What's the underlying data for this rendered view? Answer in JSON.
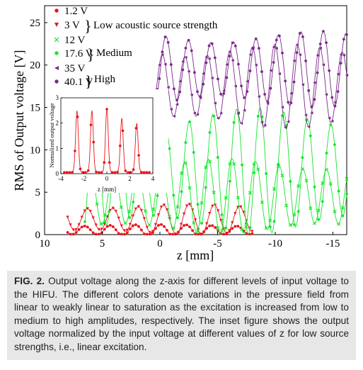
{
  "colors": {
    "low": "#e8141b",
    "medium": "#14e62a",
    "high": "#7a2a8a"
  },
  "chart_data": [
    {
      "type": "line",
      "xlabel": "z [mm]",
      "ylabel": "RMS of Output voltage [V]",
      "xlim": [
        10,
        -16.2
      ],
      "ylim": [
        0,
        27
      ],
      "x_ticks": [
        "10",
        "5",
        "0",
        "-5",
        "-10",
        "-15"
      ],
      "y_ticks": [
        "0",
        "5",
        "10",
        "15",
        "20",
        "25"
      ],
      "legend_position": "top-left",
      "legend_groups": [
        "Low acoustic source strength",
        "Medium",
        "High"
      ],
      "series": [
        {
          "name": "1.2 V",
          "group": "low",
          "marker": "dot",
          "x_range": [
            8,
            -8
          ],
          "baseline": 0.5,
          "amplitude": 0.7,
          "period": 2.2,
          "phase": 0.2
        },
        {
          "name": "3 V",
          "group": "low",
          "marker": "down-triangle",
          "x_range": [
            8,
            -8
          ],
          "baseline": 1.8,
          "amplitude": 1.8,
          "period": 2.2,
          "phase": 0.9
        },
        {
          "name": "12 V",
          "group": "medium",
          "marker": "x",
          "x_range": [
            6.5,
            -16.2
          ],
          "baseline": 4.5,
          "amplitude": 4.5,
          "period": 2.05,
          "phase": 0.3
        },
        {
          "name": "17.6 V",
          "group": "medium",
          "marker": "dot",
          "x_range": [
            6.5,
            -16.2
          ],
          "baseline": 7.5,
          "amplitude": 7.5,
          "period": 2.05,
          "phase": 1.5
        },
        {
          "name": "35 V",
          "group": "high",
          "marker": "left-triangle",
          "x_range": [
            0.3,
            -16.2
          ],
          "baseline": 17.5,
          "amplitude": 5.0,
          "period": 1.95,
          "phase": 0.7
        },
        {
          "name": "40.1 V",
          "group": "high",
          "marker": "dot",
          "x_range": [
            0.3,
            -16.2
          ],
          "baseline": 19.5,
          "amplitude": 4.5,
          "period": 1.95,
          "phase": 1.7
        }
      ]
    },
    {
      "type": "line",
      "inset": true,
      "xlabel": "z [mm]",
      "ylabel": "Normalized output voltage",
      "xlim": [
        -4,
        4
      ],
      "ylim": [
        0,
        3
      ],
      "x_ticks": [
        "-4",
        "-2",
        "0",
        "2",
        "4"
      ],
      "y_ticks": [
        "0",
        "1",
        "2",
        "3"
      ],
      "series": [
        {
          "name": "low source normalized",
          "period": 1.3,
          "peaks": [
            2.5,
            2.5,
            2.55,
            2.2,
            2.0
          ],
          "min": 0.05
        }
      ]
    }
  ],
  "caption": {
    "label": "FIG. 2.",
    "text": " Output voltage along the z-axis for different levels of input voltage to the HIFU. The different colors denote variations in the pressure field from linear to weakly linear to saturation as the excitation is increased from low to medium to high amplitudes, respectively. The inset figure shows the output voltage normalized by the input voltage at different values of z for low source strengths, i.e., linear excitation."
  }
}
